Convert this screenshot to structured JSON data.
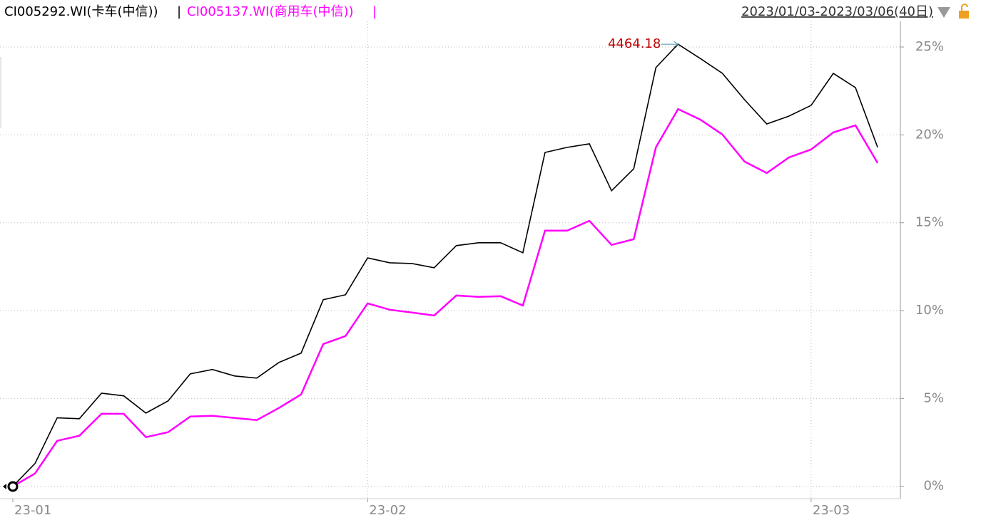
{
  "chart_data": {
    "type": "line",
    "separator": "|",
    "range_label": "2023/01/03-2023/03/06(40日)",
    "annotation": "4464.18",
    "categories": [
      "23-01",
      null,
      null,
      null,
      null,
      null,
      null,
      null,
      null,
      null,
      null,
      null,
      null,
      null,
      null,
      null,
      "23-02",
      null,
      null,
      null,
      null,
      null,
      null,
      null,
      null,
      null,
      null,
      null,
      null,
      null,
      null,
      null,
      null,
      null,
      null,
      null,
      "23-03",
      null,
      null,
      null
    ],
    "series": [
      {
        "name": "CI005292.WI(卡车(中信))",
        "color": "#000000",
        "values": [
          0,
          1.3,
          3.9,
          3.85,
          5.3,
          5.15,
          4.17,
          4.86,
          6.4,
          6.65,
          6.28,
          6.16,
          7.05,
          7.58,
          10.62,
          10.9,
          13.0,
          12.72,
          12.68,
          12.44,
          13.7,
          13.86,
          13.86,
          13.29,
          19.0,
          19.29,
          19.49,
          16.82,
          18.07,
          23.83,
          25.16,
          24.35,
          23.5,
          22.0,
          20.62,
          21.07,
          21.68,
          23.5,
          22.69,
          19.29
        ]
      },
      {
        "name": "CI005137.WI(商用车(中信))",
        "color": "#ff00ff",
        "values": [
          0,
          0.73,
          2.59,
          2.88,
          4.13,
          4.13,
          2.8,
          3.08,
          3.97,
          4.01,
          3.89,
          3.77,
          4.46,
          5.23,
          8.1,
          8.55,
          10.41,
          10.05,
          9.89,
          9.72,
          10.86,
          10.78,
          10.82,
          10.29,
          14.55,
          14.55,
          15.11,
          13.74,
          14.06,
          19.29,
          21.47,
          20.87,
          20.02,
          18.48,
          17.83,
          18.72,
          19.17,
          20.14,
          20.54,
          18.4
        ]
      }
    ],
    "ylim": [
      -0.7,
      26.46
    ],
    "yticks": [
      {
        "value": 0,
        "label": "0%"
      },
      {
        "value": 5,
        "label": "5%"
      },
      {
        "value": 10,
        "label": "10%"
      },
      {
        "value": 15,
        "label": "15%"
      },
      {
        "value": 20,
        "label": "20%"
      },
      {
        "value": 25,
        "label": "25%"
      }
    ],
    "grid": true
  }
}
